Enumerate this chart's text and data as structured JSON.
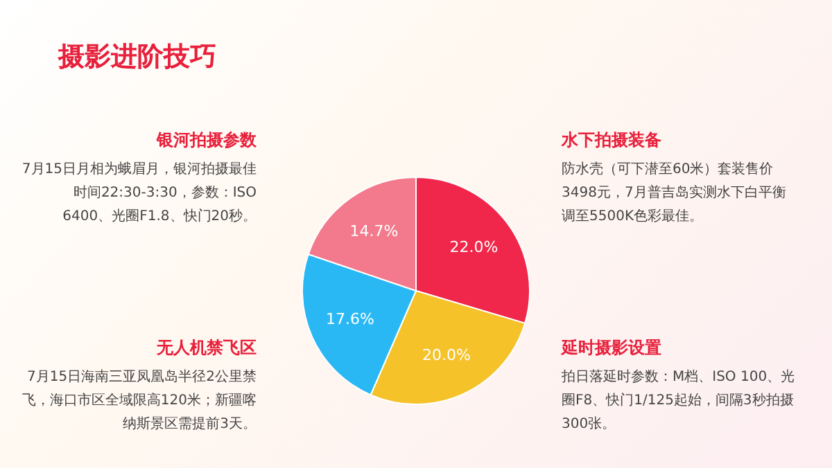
{
  "chart_data": {
    "type": "pie",
    "title": "摄影进阶技巧",
    "categories": [
      "水下拍摄装备",
      "延时摄影设置",
      "无人机禁飞区",
      "银河拍摄参数"
    ],
    "values": [
      22.0,
      20.0,
      17.6,
      14.7
    ],
    "colors": [
      "#f0264a",
      "#f5c22a",
      "#2ab8f5",
      "#f27a8c"
    ],
    "value_labels": [
      "22.0%",
      "20.0%",
      "17.6%",
      "14.7%"
    ],
    "annotations": [
      "防水壳（可下潜至60米）套装售价3498元，7月普吉岛实测水下白平衡调至5500K色彩最佳。",
      "拍日落延时参数：M档、ISO 100、光圈F8、快门1/125起始，间隔3秒拍摄300张。",
      "7月15日海南三亚凤凰岛半径2公里禁飞，海口市区全域限高120米；新疆喀纳斯景区需提前3天。",
      "7月15日月相为蛾眉月，银河拍摄最佳时间22:30-3:30，参数：ISO 6400、光圈F1.8、快门20秒。"
    ]
  }
}
